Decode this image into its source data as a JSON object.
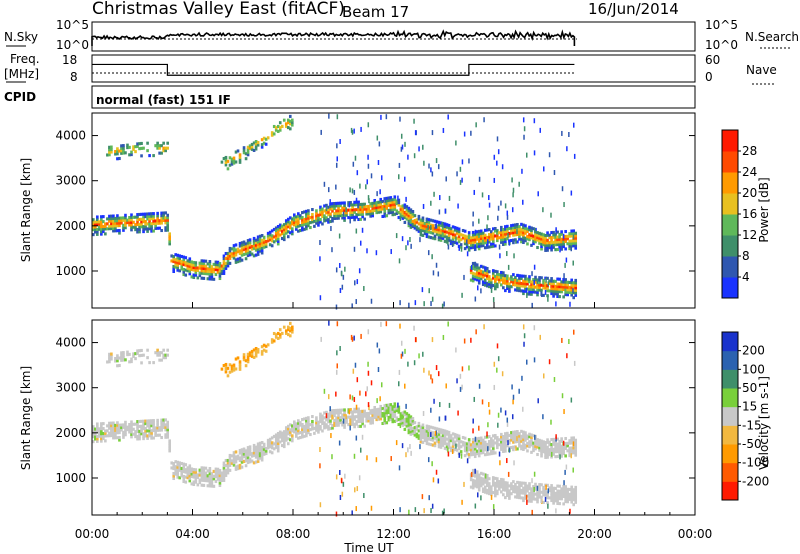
{
  "header": {
    "station": "Christmas Valley East (fitACF)",
    "beam": "Beam 17",
    "date": "16/Jun/2014"
  },
  "status_panel": {
    "left_label": "N.Sky",
    "right_label": "N.Search",
    "left_ticks": [
      "10^5",
      "10^0"
    ],
    "right_ticks": [
      "10^5",
      "10^0"
    ]
  },
  "freq_panel": {
    "left_label_line1": "Freq.",
    "left_label_line2": "[MHz]",
    "right_label": "Nave",
    "left_ticks": [
      "18",
      "8"
    ],
    "right_ticks": [
      "60",
      "0"
    ]
  },
  "cpid": {
    "label": "CPID",
    "value": "normal (fast) 151 IF"
  },
  "colors": {
    "power": [
      "#1a33ff",
      "#2f57b0",
      "#3f8f6a",
      "#5fb85a",
      "#e8c020",
      "#ff9a00",
      "#ff4a00",
      "#ff1a00"
    ],
    "velocity": [
      "#ff1a00",
      "#ff5a00",
      "#ff9a00",
      "#f2b840",
      "#c8c8c8",
      "#79cf3a",
      "#3f8f6a",
      "#2b62b0",
      "#1a33cc"
    ]
  },
  "chart_data": [
    {
      "type": "heatmap",
      "title": "",
      "quantity": "Power",
      "xlabel": "",
      "ylabel": "Slant Range [km]",
      "colorbar_label": "Power [dB]",
      "colorbar_ticks": [
        "4",
        "8",
        "12",
        "16",
        "20",
        "24",
        "28"
      ],
      "x_ticks": [
        "00:00",
        "04:00",
        "08:00",
        "12:00",
        "16:00",
        "20:00",
        "00:00"
      ],
      "y_ticks": [
        "1000",
        "2000",
        "3000",
        "4000"
      ],
      "xlim_hours": [
        0,
        24
      ],
      "ylim_km": [
        180,
        4500
      ],
      "echo_bands": [
        {
          "x_hours": [
            0.0,
            3.0,
            3.1,
            4.0,
            5.0,
            5.5,
            7.0,
            8.0,
            9.5,
            11.0,
            12.0,
            13.0,
            14.0,
            15.0,
            16.0,
            17.0,
            18.0,
            19.2
          ],
          "range_km": [
            2000,
            2100,
            1200,
            1050,
            1000,
            1350,
            1650,
            2050,
            2300,
            2350,
            2450,
            2000,
            1850,
            1650,
            1750,
            1850,
            1650,
            1700
          ],
          "width_km": 300,
          "start_hours": 0.0,
          "end_hours": 19.2
        },
        {
          "x_hours": [
            15.0,
            16.0,
            17.0,
            18.0,
            19.2
          ],
          "range_km": [
            1000,
            800,
            700,
            650,
            600
          ],
          "width_km": 300,
          "start_hours": 15.0,
          "end_hours": 19.2
        },
        {
          "x_hours": [
            5.0,
            6.0,
            7.0,
            8.0
          ],
          "range_km": [
            3300,
            3600,
            4000,
            4350
          ],
          "width_km": 200,
          "start_hours": 5.0,
          "end_hours": 8.0
        },
        {
          "x_hours": [
            0.5,
            2.0,
            3.0
          ],
          "range_km": [
            3600,
            3700,
            3700
          ],
          "width_km": 200,
          "start_hours": 0.5,
          "end_hours": 3.0
        }
      ]
    },
    {
      "type": "heatmap",
      "title": "",
      "quantity": "Velocity",
      "xlabel": "Time UT",
      "ylabel": "Slant Range [km]",
      "colorbar_label": "Velocity [m s-1]",
      "colorbar_ticks": [
        "-200",
        "-100",
        "-50",
        "-15",
        "15",
        "50",
        "100",
        "200"
      ],
      "x_ticks": [
        "00:00",
        "04:00",
        "08:00",
        "12:00",
        "16:00",
        "20:00",
        "00:00"
      ],
      "y_ticks": [
        "1000",
        "2000",
        "3000",
        "4000"
      ],
      "xlim_hours": [
        0,
        24
      ],
      "ylim_km": [
        180,
        4500
      ]
    },
    {
      "type": "line",
      "title": "",
      "quantity": "Frequency and Nave",
      "xlim_hours": [
        0,
        24
      ],
      "freq_mhz": {
        "x_hours": [
          0.0,
          3.0,
          3.0,
          15.0,
          15.0,
          19.2
        ],
        "values": [
          14.5,
          14.5,
          10.5,
          10.5,
          14.5,
          14.5
        ]
      },
      "nave": {
        "x_hours": [
          0.0,
          19.2
        ],
        "values": [
          20,
          20
        ]
      }
    },
    {
      "type": "line",
      "title": "",
      "quantity": "N.Sky and N.Search",
      "xlim_hours": [
        0,
        24
      ]
    }
  ]
}
